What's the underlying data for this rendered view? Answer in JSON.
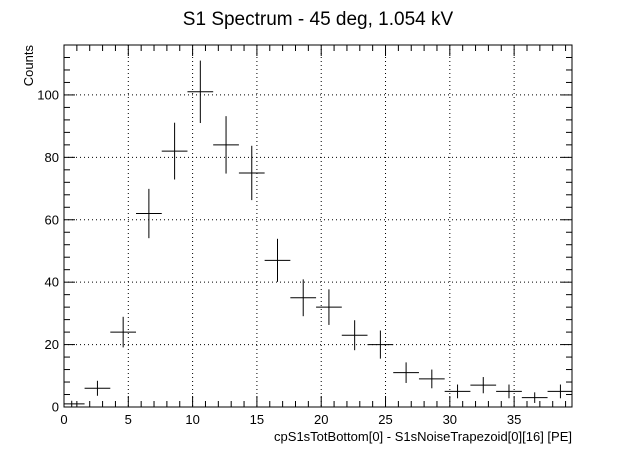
{
  "chart_data": {
    "type": "scatter",
    "title": "S1 Spectrum - 45 deg, 1.054 kV",
    "xlabel": "cpS1sTotBottom[0] - S1sNoiseTrapezoid[0][16] [PE]",
    "ylabel": "Counts",
    "xlim": [
      0,
      39.5
    ],
    "ylim": [
      0,
      116
    ],
    "grid": true,
    "x_ticks": [
      0,
      5,
      10,
      15,
      20,
      25,
      30,
      35
    ],
    "y_ticks": [
      0,
      20,
      40,
      60,
      80,
      100
    ],
    "bin_width": 2,
    "points": [
      {
        "x": 0.6,
        "y": 1,
        "xerr": 1,
        "yerr": 1
      },
      {
        "x": 2.6,
        "y": 6,
        "xerr": 1,
        "yerr": 2.4
      },
      {
        "x": 4.6,
        "y": 24,
        "xerr": 1,
        "yerr": 4.9
      },
      {
        "x": 6.6,
        "y": 62,
        "xerr": 1,
        "yerr": 7.9
      },
      {
        "x": 8.6,
        "y": 82,
        "xerr": 1,
        "yerr": 9.1
      },
      {
        "x": 10.6,
        "y": 101,
        "xerr": 1,
        "yerr": 10
      },
      {
        "x": 12.6,
        "y": 84,
        "xerr": 1,
        "yerr": 9.2
      },
      {
        "x": 14.6,
        "y": 75,
        "xerr": 1,
        "yerr": 8.7
      },
      {
        "x": 16.6,
        "y": 47,
        "xerr": 1,
        "yerr": 6.9
      },
      {
        "x": 18.6,
        "y": 35,
        "xerr": 1,
        "yerr": 5.9
      },
      {
        "x": 20.6,
        "y": 32,
        "xerr": 1,
        "yerr": 5.7
      },
      {
        "x": 22.6,
        "y": 23,
        "xerr": 1,
        "yerr": 4.8
      },
      {
        "x": 24.6,
        "y": 20,
        "xerr": 1,
        "yerr": 4.5
      },
      {
        "x": 26.6,
        "y": 11,
        "xerr": 1,
        "yerr": 3.3
      },
      {
        "x": 28.6,
        "y": 9,
        "xerr": 1,
        "yerr": 3
      },
      {
        "x": 30.6,
        "y": 5,
        "xerr": 1,
        "yerr": 2.2
      },
      {
        "x": 32.6,
        "y": 7,
        "xerr": 1,
        "yerr": 2.6
      },
      {
        "x": 34.6,
        "y": 5,
        "xerr": 1,
        "yerr": 2.2
      },
      {
        "x": 36.6,
        "y": 3,
        "xerr": 1,
        "yerr": 1.7
      },
      {
        "x": 38.6,
        "y": 5,
        "xerr": 1,
        "yerr": 2.2
      }
    ]
  }
}
